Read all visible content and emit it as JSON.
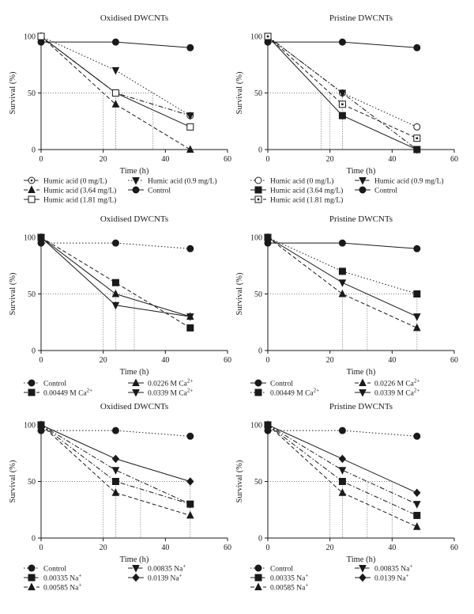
{
  "chart_data": [
    {
      "type": "line",
      "title": "Oxidised DWCNTs",
      "xlabel": "Time (h)",
      "ylabel": "Survival (%)",
      "xlim": [
        0,
        60
      ],
      "ylim": [
        0,
        100
      ],
      "xticks": [
        "0",
        "20",
        "40",
        "60"
      ],
      "yticks": [
        "0",
        "50",
        "100"
      ],
      "grid": false,
      "legend_position": "bottom",
      "series": [
        {
          "name": "Humic acid (0 mg/L)",
          "marker": "circle-open-dot",
          "dash": "dashdot",
          "x": [
            0,
            24,
            48
          ],
          "y": [
            100,
            50,
            30
          ]
        },
        {
          "name": "Humic acid (0.9 mg/L)",
          "marker": "triangle-down",
          "dash": "dot",
          "x": [
            0,
            24,
            48
          ],
          "y": [
            100,
            70,
            30
          ]
        },
        {
          "name": "Humic acid (3.64 mg/L)",
          "marker": "triangle-up",
          "dash": "dash",
          "x": [
            0,
            24,
            48
          ],
          "y": [
            100,
            40,
            0
          ]
        },
        {
          "name": "Control",
          "marker": "circle",
          "dash": "solid",
          "x": [
            0,
            24,
            48
          ],
          "y": [
            95,
            95,
            90
          ]
        },
        {
          "name": "Humic acid (1.81 mg/L)",
          "marker": "square-open",
          "dash": "solid",
          "x": [
            0,
            24,
            48
          ],
          "y": [
            100,
            50,
            20
          ]
        }
      ]
    },
    {
      "type": "line",
      "title": "Pristine DWCNTs",
      "xlabel": "Time (h)",
      "ylabel": "Survival (%)",
      "xlim": [
        0,
        60
      ],
      "ylim": [
        0,
        100
      ],
      "xticks": [
        "0",
        "20",
        "40",
        "60"
      ],
      "yticks": [
        "0",
        "50",
        "100"
      ],
      "grid": false,
      "legend_position": "bottom",
      "series": [
        {
          "name": "Humic acid (0 mg/L)",
          "marker": "circle-open",
          "dash": "dot",
          "x": [
            0,
            24,
            48
          ],
          "y": [
            100,
            50,
            20
          ]
        },
        {
          "name": "Humic acid (0.9 mg/L)",
          "marker": "triangle-down",
          "dash": "dashdot",
          "x": [
            0,
            24,
            48
          ],
          "y": [
            100,
            50,
            0
          ]
        },
        {
          "name": "Humic acid (3.64 mg/L)",
          "marker": "square",
          "dash": "solid",
          "x": [
            0,
            24,
            48
          ],
          "y": [
            100,
            30,
            0
          ]
        },
        {
          "name": "Control",
          "marker": "circle",
          "dash": "solid",
          "x": [
            0,
            24,
            48
          ],
          "y": [
            95,
            95,
            90
          ]
        },
        {
          "name": "Humic acid (1.81 mg/L)",
          "marker": "square-open-dot",
          "dash": "dash",
          "x": [
            0,
            24,
            48
          ],
          "y": [
            100,
            40,
            10
          ]
        }
      ]
    },
    {
      "type": "line",
      "title": "Oxidised DWCNTs",
      "xlabel": "Time (h)",
      "ylabel": "Survival (%)",
      "xlim": [
        0,
        60
      ],
      "ylim": [
        0,
        100
      ],
      "xticks": [
        "0",
        "20",
        "40",
        "60"
      ],
      "yticks": [
        "0",
        "50",
        "100"
      ],
      "grid": false,
      "legend_position": "bottom",
      "series": [
        {
          "name": "Control",
          "marker": "circle",
          "dash": "dot",
          "x": [
            0,
            24,
            48
          ],
          "y": [
            95,
            95,
            90
          ]
        },
        {
          "name": "0.0226 M Ca",
          "ion": "2+",
          "marker": "triangle-up",
          "dash": "solid",
          "x": [
            0,
            24,
            48
          ],
          "y": [
            100,
            50,
            30
          ]
        },
        {
          "name": "0.00449 M Ca",
          "ion": "2+",
          "marker": "square",
          "dash": "dash",
          "x": [
            0,
            24,
            48
          ],
          "y": [
            100,
            60,
            20
          ]
        },
        {
          "name": "0.0339 M Ca",
          "ion": "2+",
          "marker": "triangle-down",
          "dash": "solid",
          "x": [
            0,
            24,
            48
          ],
          "y": [
            100,
            40,
            30
          ]
        }
      ]
    },
    {
      "type": "line",
      "title": "Pristine DWCNTs",
      "xlabel": "Time (h)",
      "ylabel": "Survival (%)",
      "xlim": [
        0,
        60
      ],
      "ylim": [
        0,
        100
      ],
      "xticks": [
        "0",
        "20",
        "40",
        "60"
      ],
      "yticks": [
        "0",
        "50",
        "100"
      ],
      "grid": false,
      "legend_position": "bottom",
      "series": [
        {
          "name": "Control",
          "marker": "circle",
          "dash": "solid",
          "x": [
            0,
            24,
            48
          ],
          "y": [
            95,
            95,
            90
          ]
        },
        {
          "name": "0.0226 M Ca",
          "ion": "2+",
          "marker": "triangle-up",
          "dash": "dash",
          "x": [
            0,
            24,
            48
          ],
          "y": [
            100,
            50,
            20
          ]
        },
        {
          "name": "0.00449 M Ca",
          "ion": "2+",
          "marker": "square",
          "dash": "dot",
          "x": [
            0,
            24,
            48
          ],
          "y": [
            100,
            70,
            50
          ]
        },
        {
          "name": "0.0339 M Ca",
          "ion": "2+",
          "marker": "triangle-down",
          "dash": "solid",
          "x": [
            0,
            24,
            48
          ],
          "y": [
            100,
            60,
            30
          ]
        }
      ]
    },
    {
      "type": "line",
      "title": "Oxidised DWCNTs",
      "xlabel": "Time (h)",
      "ylabel": "Survival (%)",
      "xlim": [
        0,
        60
      ],
      "ylim": [
        0,
        100
      ],
      "xticks": [
        "0",
        "20",
        "40",
        "60"
      ],
      "yticks": [
        "0",
        "50",
        "100"
      ],
      "grid": false,
      "legend_position": "bottom",
      "series": [
        {
          "name": "Control",
          "marker": "circle",
          "dash": "dot",
          "x": [
            0,
            24,
            48
          ],
          "y": [
            95,
            95,
            90
          ]
        },
        {
          "name": "0.00835 Na",
          "ion": "+",
          "marker": "triangle-down",
          "dash": "dashdot",
          "x": [
            0,
            24,
            48
          ],
          "y": [
            100,
            60,
            30
          ]
        },
        {
          "name": "0.00335 Na",
          "ion": "+",
          "marker": "square",
          "dash": "dashdot",
          "x": [
            0,
            24,
            48
          ],
          "y": [
            100,
            50,
            30
          ]
        },
        {
          "name": "0.0139 Na",
          "ion": "+",
          "marker": "diamond",
          "dash": "solid",
          "x": [
            0,
            24,
            48
          ],
          "y": [
            100,
            70,
            50
          ]
        },
        {
          "name": "0.00585 Na",
          "ion": "+",
          "marker": "triangle-up",
          "dash": "dash",
          "x": [
            0,
            24,
            48
          ],
          "y": [
            100,
            40,
            20
          ]
        }
      ]
    },
    {
      "type": "line",
      "title": "Pristine DWCNTs",
      "xlabel": "Time (h)",
      "ylabel": "Survival (%)",
      "xlim": [
        0,
        60
      ],
      "ylim": [
        0,
        100
      ],
      "xticks": [
        "0",
        "20",
        "40",
        "60"
      ],
      "yticks": [
        "0",
        "50",
        "100"
      ],
      "grid": false,
      "legend_position": "bottom",
      "series": [
        {
          "name": "Control",
          "marker": "circle",
          "dash": "dot",
          "x": [
            0,
            24,
            48
          ],
          "y": [
            95,
            95,
            90
          ]
        },
        {
          "name": "0.00835 Na",
          "ion": "+",
          "marker": "triangle-down",
          "dash": "dashdot",
          "x": [
            0,
            24,
            48
          ],
          "y": [
            100,
            60,
            30
          ]
        },
        {
          "name": "0.00335 Na",
          "ion": "+",
          "marker": "square",
          "dash": "dashdot",
          "x": [
            0,
            24,
            48
          ],
          "y": [
            100,
            50,
            20
          ]
        },
        {
          "name": "0.0139 Na",
          "ion": "+",
          "marker": "diamond",
          "dash": "solid",
          "x": [
            0,
            24,
            48
          ],
          "y": [
            100,
            70,
            40
          ]
        },
        {
          "name": "0.00585 Na",
          "ion": "+",
          "marker": "triangle-up",
          "dash": "dash",
          "x": [
            0,
            24,
            48
          ],
          "y": [
            100,
            40,
            10
          ]
        }
      ]
    }
  ]
}
